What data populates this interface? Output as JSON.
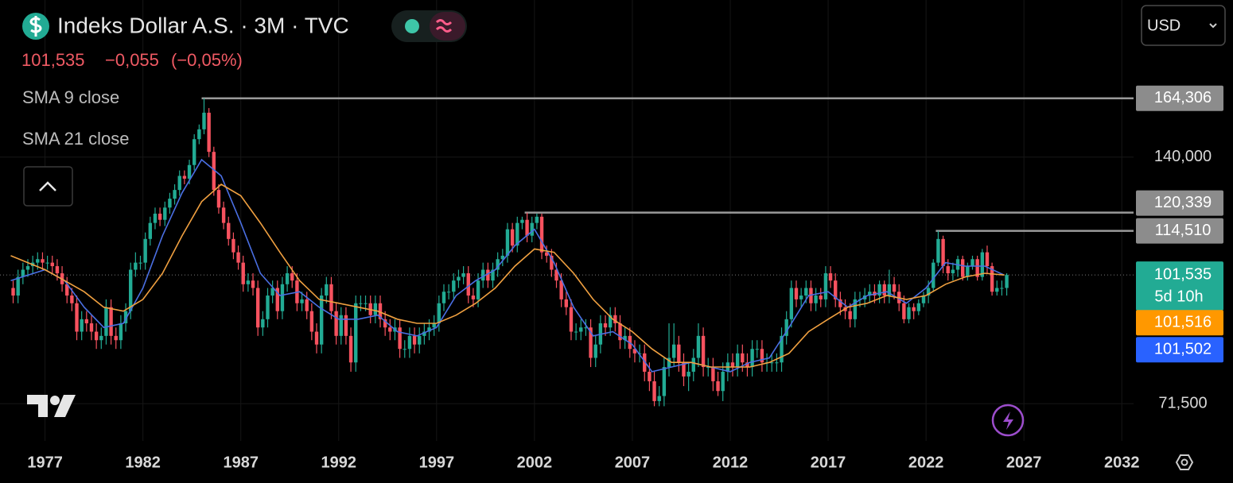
{
  "header": {
    "title": "Indeks Dollar A.S. · 3M · TVC",
    "last": "101,535",
    "change": "−0,055",
    "change_pct": "(−0,05%)",
    "currency": "USD"
  },
  "chart_data": {
    "type": "candlestick",
    "log_scale": true,
    "grid": true,
    "up_color": "#22ab94",
    "down_color": "#f7525f",
    "xlim": [
      1974.7,
      2032.6
    ],
    "xticks": [
      1977,
      1982,
      1987,
      1992,
      1997,
      2002,
      2007,
      2012,
      2017,
      2022,
      2027,
      2032
    ],
    "ylim": [
      64.6,
      214.8
    ],
    "yticks": [
      {
        "value": 71.5,
        "label": "71,500"
      },
      {
        "value": 140,
        "label": "140,000"
      }
    ],
    "x": [
      1975.25,
      1975.5,
      1975.75,
      1976,
      1976.25,
      1976.5,
      1976.75,
      1977,
      1977.25,
      1977.5,
      1977.75,
      1978,
      1978.25,
      1978.5,
      1978.75,
      1979,
      1979.25,
      1979.5,
      1979.75,
      1980,
      1980.25,
      1980.5,
      1980.75,
      1981,
      1981.25,
      1981.5,
      1981.75,
      1982,
      1982.25,
      1982.5,
      1982.75,
      1983,
      1983.25,
      1983.5,
      1983.75,
      1984,
      1984.25,
      1984.5,
      1984.75,
      1985,
      1985.25,
      1985.5,
      1985.75,
      1986,
      1986.25,
      1986.5,
      1986.75,
      1987,
      1987.25,
      1987.5,
      1987.75,
      1988,
      1988.25,
      1988.5,
      1988.75,
      1989,
      1989.25,
      1989.5,
      1989.75,
      1990,
      1990.25,
      1990.5,
      1990.75,
      1991,
      1991.25,
      1991.5,
      1991.75,
      1992,
      1992.25,
      1992.5,
      1992.75,
      1993,
      1993.25,
      1993.5,
      1993.75,
      1994,
      1994.25,
      1994.5,
      1994.75,
      1995,
      1995.25,
      1995.5,
      1995.75,
      1996,
      1996.25,
      1996.5,
      1996.75,
      1997,
      1997.25,
      1997.5,
      1997.75,
      1998,
      1998.25,
      1998.5,
      1998.75,
      1999,
      1999.25,
      1999.5,
      1999.75,
      2000,
      2000.25,
      2000.5,
      2000.75,
      2001,
      2001.25,
      2001.5,
      2001.75,
      2002,
      2002.25,
      2002.5,
      2002.75,
      2003,
      2003.25,
      2003.5,
      2003.75,
      2004,
      2004.25,
      2004.5,
      2004.75,
      2005,
      2005.25,
      2005.5,
      2005.75,
      2006,
      2006.25,
      2006.5,
      2006.75,
      2007,
      2007.25,
      2007.5,
      2007.75,
      2008,
      2008.25,
      2008.5,
      2008.75,
      2009,
      2009.25,
      2009.5,
      2009.75,
      2010,
      2010.25,
      2010.5,
      2010.75,
      2011,
      2011.25,
      2011.5,
      2011.75,
      2012,
      2012.25,
      2012.5,
      2012.75,
      2013,
      2013.25,
      2013.5,
      2013.75,
      2014,
      2014.25,
      2014.5,
      2014.75,
      2015,
      2015.25,
      2015.5,
      2015.75,
      2016,
      2016.25,
      2016.5,
      2016.75,
      2017,
      2017.25,
      2017.5,
      2017.75,
      2018,
      2018.25,
      2018.5,
      2018.75,
      2019,
      2019.25,
      2019.5,
      2019.75,
      2020,
      2020.25,
      2020.5,
      2020.75,
      2021,
      2021.25,
      2021.5,
      2021.75,
      2022,
      2022.25,
      2022.5,
      2022.75,
      2023,
      2023.25,
      2023.5,
      2023.75,
      2024,
      2024.25,
      2024.5,
      2024.75,
      2025,
      2025.25,
      2025.5,
      2025.75,
      2026
    ],
    "open": [
      98,
      96,
      101,
      103,
      104,
      105,
      106,
      105,
      105,
      104,
      102,
      99,
      96,
      94,
      87,
      90,
      89,
      87,
      85,
      86,
      93,
      86,
      85,
      89,
      92,
      103,
      105,
      105,
      112,
      117,
      120,
      118,
      122,
      125,
      128,
      133,
      132,
      137,
      147,
      151,
      158,
      142,
      128,
      122,
      117,
      112,
      108,
      105,
      99,
      100,
      98,
      88,
      90,
      96,
      98,
      92,
      99,
      102,
      100,
      94,
      95,
      92,
      87,
      84,
      96,
      99,
      92,
      86,
      91,
      86,
      80,
      94,
      94,
      94,
      91,
      94,
      90,
      88,
      87,
      88,
      83,
      83,
      86,
      84,
      86,
      87,
      88,
      89,
      94,
      97,
      97,
      100,
      101,
      102,
      96,
      95,
      100,
      103,
      100,
      103,
      106,
      107,
      115,
      110,
      117,
      118,
      113,
      117,
      119,
      108,
      107,
      103,
      100,
      95,
      93,
      87,
      87,
      88,
      88,
      81,
      84,
      89,
      88,
      91,
      89,
      85,
      86,
      83,
      82,
      82,
      78,
      76,
      72,
      73,
      79,
      81,
      84,
      80,
      77,
      78,
      81,
      86,
      79,
      79,
      76,
      74,
      78,
      80,
      79,
      82,
      80,
      79,
      83,
      83,
      80,
      80,
      80,
      80,
      86,
      90,
      98,
      95,
      96,
      98,
      94,
      96,
      95,
      102,
      100,
      95,
      93,
      92,
      90,
      95,
      95,
      96,
      97,
      96,
      99,
      96,
      99,
      97,
      94,
      90,
      93,
      92,
      94,
      96,
      98,
      105,
      112,
      104,
      102,
      103,
      106,
      101,
      104,
      106,
      101,
      108,
      104,
      97,
      98,
      98
    ],
    "high": [
      100,
      103,
      105,
      106,
      107,
      108,
      108,
      107,
      107,
      106,
      104,
      101,
      98,
      96,
      92,
      92,
      91,
      89,
      88,
      95,
      95,
      88,
      91,
      94,
      105,
      108,
      107,
      114,
      119,
      122,
      122,
      124,
      127,
      130,
      135,
      135,
      139,
      149,
      153,
      164.306,
      160,
      144,
      130,
      124,
      119,
      114,
      110,
      107,
      102,
      102,
      100,
      92,
      98,
      100,
      100,
      101,
      104,
      104,
      102,
      97,
      97,
      94,
      89,
      98,
      101,
      101,
      94,
      93,
      93,
      88,
      96,
      96,
      96,
      96,
      96,
      96,
      92,
      90,
      90,
      90,
      85,
      88,
      88,
      88,
      89,
      90,
      91,
      96,
      99,
      99,
      102,
      103,
      104,
      104,
      98,
      102,
      105,
      105,
      105,
      108,
      109,
      117,
      117,
      119,
      119,
      120.339,
      119,
      120,
      120,
      110,
      109,
      105,
      102,
      97,
      95,
      89,
      90,
      90,
      90,
      86,
      91,
      91,
      93,
      93,
      91,
      88,
      88,
      85,
      84,
      84,
      80,
      78,
      75,
      81,
      89,
      89,
      86,
      82,
      80,
      83,
      89,
      88,
      81,
      81,
      78,
      80,
      82,
      82,
      84,
      84,
      82,
      85,
      85,
      85,
      82,
      82,
      82,
      88,
      92,
      100,
      100,
      98,
      100,
      100,
      98,
      98,
      104,
      104,
      102,
      97,
      95,
      94,
      97,
      97,
      98,
      99,
      99,
      100,
      100,
      103,
      101,
      99,
      96,
      94,
      94,
      95,
      97,
      100,
      106,
      114.51,
      113,
      106,
      105,
      107,
      107,
      105,
      107,
      107,
      109,
      110,
      105,
      100,
      100,
      102
    ],
    "low": [
      94,
      94,
      99,
      101,
      102,
      103,
      103,
      103,
      102,
      100,
      97,
      94,
      92,
      85,
      85,
      87,
      85,
      83,
      83,
      84,
      84,
      83,
      83,
      87,
      90,
      101,
      103,
      103,
      110,
      115,
      116,
      116,
      120,
      123,
      126,
      130,
      130,
      135,
      145,
      149,
      140,
      126,
      120,
      115,
      110,
      106,
      103,
      97,
      97,
      96,
      86,
      86,
      88,
      94,
      90,
      90,
      97,
      98,
      92,
      92,
      90,
      85,
      82,
      82,
      94,
      90,
      84,
      84,
      84,
      78,
      78,
      92,
      92,
      89,
      89,
      88,
      86,
      85,
      85,
      81,
      81,
      81,
      82,
      82,
      84,
      85,
      86,
      87,
      92,
      95,
      95,
      98,
      99,
      94,
      93,
      93,
      98,
      98,
      98,
      101,
      104,
      105,
      108,
      108,
      115,
      111,
      111,
      115,
      106,
      105,
      101,
      98,
      93,
      91,
      85,
      85,
      85,
      86,
      79,
      79,
      82,
      86,
      86,
      87,
      83,
      83,
      81,
      80,
      80,
      76,
      74,
      71,
      71,
      71,
      77,
      79,
      78,
      75,
      74,
      76,
      79,
      77,
      77,
      74,
      73,
      72,
      76,
      77,
      77,
      78,
      77,
      77,
      81,
      78,
      78,
      78,
      78,
      78,
      84,
      88,
      93,
      93,
      94,
      92,
      92,
      93,
      93,
      98,
      93,
      91,
      90,
      88,
      88,
      93,
      93,
      94,
      94,
      94,
      94,
      94,
      95,
      92,
      89,
      89,
      90,
      91,
      93,
      94,
      97,
      104,
      102,
      100,
      100,
      101,
      100,
      100,
      103,
      100,
      100,
      102,
      96,
      96,
      96,
      96
    ],
    "close": [
      96,
      101,
      103,
      104,
      105,
      106,
      105,
      105,
      104,
      102,
      99,
      96,
      94,
      87,
      90,
      89,
      87,
      85,
      86,
      93,
      86,
      85,
      89,
      92,
      103,
      105,
      105,
      112,
      117,
      120,
      118,
      122,
      125,
      128,
      133,
      132,
      137,
      147,
      151,
      158,
      142,
      128,
      122,
      117,
      112,
      108,
      105,
      99,
      100,
      98,
      88,
      90,
      96,
      98,
      92,
      99,
      102,
      100,
      94,
      95,
      92,
      87,
      84,
      96,
      99,
      92,
      86,
      91,
      86,
      80,
      94,
      94,
      94,
      91,
      94,
      90,
      88,
      87,
      88,
      83,
      83,
      86,
      84,
      86,
      87,
      88,
      89,
      94,
      97,
      97,
      100,
      101,
      102,
      96,
      95,
      100,
      103,
      100,
      103,
      106,
      107,
      115,
      110,
      117,
      118,
      113,
      117,
      119,
      108,
      107,
      103,
      100,
      95,
      93,
      87,
      87,
      88,
      88,
      81,
      84,
      89,
      88,
      91,
      89,
      85,
      86,
      83,
      82,
      82,
      78,
      76,
      72,
      73,
      79,
      81,
      84,
      80,
      77,
      78,
      81,
      86,
      79,
      79,
      76,
      74,
      78,
      80,
      79,
      82,
      80,
      79,
      83,
      83,
      80,
      80,
      80,
      80,
      86,
      90,
      98,
      95,
      96,
      98,
      94,
      96,
      95,
      102,
      100,
      95,
      93,
      92,
      90,
      95,
      95,
      96,
      97,
      96,
      99,
      96,
      99,
      97,
      94,
      90,
      93,
      92,
      94,
      96,
      98,
      105,
      112,
      104,
      102,
      103,
      106,
      101,
      104,
      106,
      101,
      108,
      104,
      97,
      98,
      98,
      101.535
    ],
    "series": [
      {
        "name": "SMA 9 close",
        "color": "#4a6fe3",
        "x": [
          1975.25,
          1977,
          1978,
          1979,
          1980,
          1981,
          1982,
          1983,
          1984,
          1985,
          1986,
          1987,
          1988,
          1989,
          1990,
          1991,
          1992,
          1993,
          1994,
          1995,
          1996,
          1997,
          1998,
          1999,
          2000,
          2001,
          2002,
          2003,
          2004,
          2005,
          2006,
          2007,
          2008,
          2009,
          2010,
          2011,
          2012,
          2013,
          2014,
          2015,
          2016,
          2017,
          2018,
          2019,
          2020,
          2021,
          2022,
          2023,
          2024,
          2025,
          2026
        ],
        "values": [
          100,
          103,
          100,
          93,
          88,
          89,
          98,
          113,
          127,
          139,
          133,
          117,
          102,
          96,
          97,
          93,
          90,
          90,
          91,
          87,
          86,
          88,
          96,
          100,
          103,
          110,
          115,
          105,
          93,
          86,
          87,
          84,
          78,
          79,
          80,
          79,
          78,
          80,
          81,
          88,
          96,
          97,
          93,
          96,
          97,
          94,
          98,
          105,
          104,
          104,
          101.502
        ]
      },
      {
        "name": "SMA 21 close",
        "color": "#f0a040",
        "x": [
          1975.25,
          1977,
          1978,
          1979,
          1980,
          1981,
          1982,
          1983,
          1984,
          1985,
          1986,
          1987,
          1988,
          1989,
          1990,
          1991,
          1992,
          1993,
          1994,
          1995,
          1996,
          1997,
          1998,
          1999,
          2000,
          2001,
          2002,
          2003,
          2004,
          2005,
          2006,
          2007,
          2008,
          2009,
          2010,
          2011,
          2012,
          2013,
          2014,
          2015,
          2016,
          2017,
          2018,
          2019,
          2020,
          2021,
          2022,
          2023,
          2024,
          2025,
          2026
        ],
        "values": [
          107,
          103,
          100,
          97,
          93,
          92,
          95,
          102,
          113,
          124,
          130,
          126,
          117,
          108,
          100,
          95,
          94,
          93,
          92,
          90,
          89,
          89,
          91,
          94,
          98,
          104,
          109,
          108,
          102,
          95,
          90,
          87,
          83,
          80,
          80,
          79,
          79,
          79,
          80,
          82,
          87,
          90,
          93,
          94,
          96,
          95,
          96,
          99,
          101,
          102,
          101.516
        ]
      }
    ],
    "price_labels": [
      {
        "value": 164.306,
        "label": "164,306",
        "color": "#8c8c8c",
        "line": "solid"
      },
      {
        "value": 120.339,
        "label": "120,339",
        "color": "#8c8c8c",
        "line": "solid"
      },
      {
        "value": 114.51,
        "label": "114,510",
        "color": "#8c8c8c",
        "line": "solid"
      },
      {
        "value": 101.535,
        "label": "101,535",
        "color": "#22ab94",
        "line": "dotted",
        "countdown": "5d 10h"
      },
      {
        "value": 101.516,
        "label": "101,516",
        "color": "#ff9800"
      },
      {
        "value": 101.502,
        "label": "101,502",
        "color": "#2962ff"
      }
    ]
  }
}
